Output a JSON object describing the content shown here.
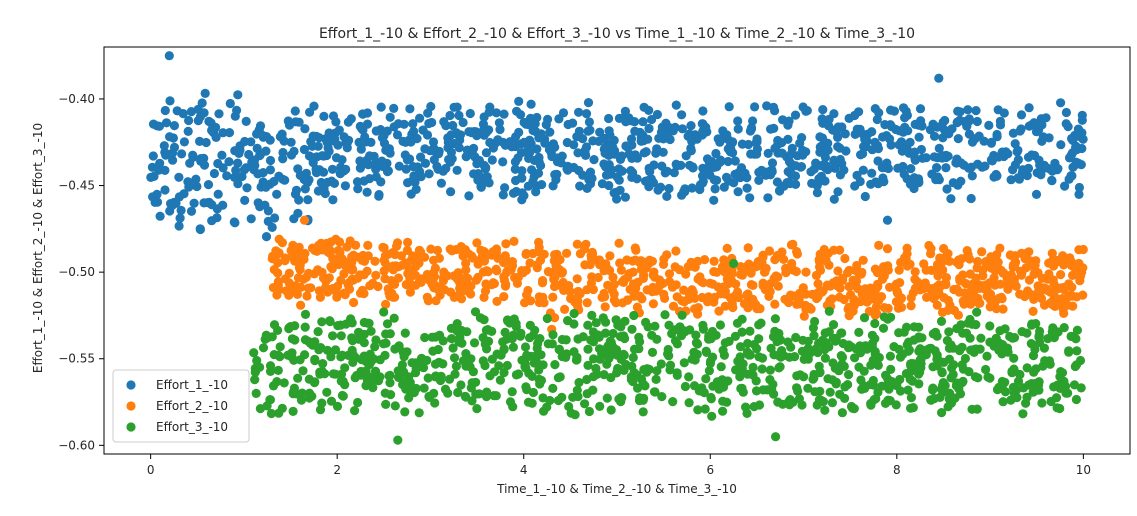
{
  "chart_data": {
    "type": "scatter",
    "title": "Effort_1_-10 & Effort_2_-10 & Effort_3_-10 vs Time_1_-10 & Time_2_-10 & Time_3_-10",
    "xlabel": "Time_1_-10 & Time_2_-10 & Time_3_-10",
    "ylabel": "Effort_1_-10 & Effort_2_-10 & Effort_3_-10",
    "xlim": [
      -0.5,
      10.5
    ],
    "ylim": [
      -0.605,
      -0.37
    ],
    "x_ticks": [
      0,
      2,
      4,
      6,
      8,
      10
    ],
    "x_tick_labels": [
      "0",
      "2",
      "4",
      "6",
      "8",
      "10"
    ],
    "y_ticks": [
      -0.6,
      -0.55,
      -0.5,
      -0.45,
      -0.4
    ],
    "y_tick_labels": [
      "−0.60",
      "−0.55",
      "−0.50",
      "−0.45",
      "−0.40"
    ],
    "grid": false,
    "legend_position": "lower-left",
    "series": [
      {
        "name": "Effort_1_-10",
        "color": "#1f77b4",
        "x_range": [
          0.0,
          10.0
        ],
        "y_bands": [
          {
            "x": [
              0.0,
              1.7
            ],
            "center": -0.44,
            "spread": 0.045
          },
          {
            "x": [
              1.7,
              10.0
            ],
            "center": -0.43,
            "spread": 0.03
          }
        ],
        "notable_points": [
          {
            "x": 0.2,
            "y": -0.375
          },
          {
            "x": 8.45,
            "y": -0.388
          },
          {
            "x": 7.9,
            "y": -0.47
          }
        ]
      },
      {
        "name": "Effort_2_-10",
        "color": "#ff7f0e",
        "x_range": [
          1.3,
          10.0
        ],
        "y_bands": [
          {
            "x": [
              1.3,
              4.2
            ],
            "center": -0.5,
            "spread": 0.02
          },
          {
            "x": [
              4.2,
              10.0
            ],
            "center": -0.505,
            "spread": 0.022
          }
        ],
        "notable_points": [
          {
            "x": 1.65,
            "y": -0.47
          },
          {
            "x": 4.3,
            "y": -0.533
          }
        ]
      },
      {
        "name": "Effort_3_-10",
        "color": "#2ca02c",
        "x_range": [
          1.1,
          10.0
        ],
        "y_bands": [
          {
            "x": [
              1.1,
              10.0
            ],
            "center": -0.553,
            "spread": 0.032
          }
        ],
        "notable_points": [
          {
            "x": 2.65,
            "y": -0.597
          },
          {
            "x": 6.7,
            "y": -0.595
          },
          {
            "x": 6.25,
            "y": -0.495
          }
        ]
      }
    ]
  }
}
